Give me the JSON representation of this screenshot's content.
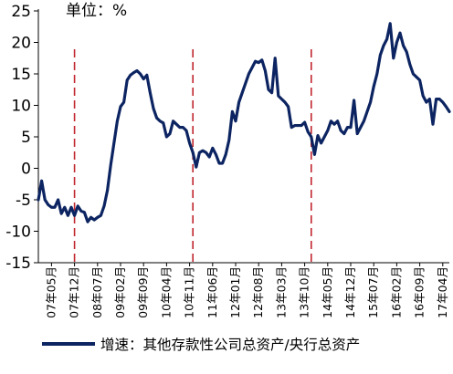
{
  "chart_data": {
    "type": "line",
    "unit_label": "单位：%",
    "yticks": [
      25,
      20,
      15,
      10,
      5,
      0,
      -5,
      -10,
      -15
    ],
    "ylim": [
      -15,
      25
    ],
    "x_tick_labels": [
      "07年05月",
      "07年12月",
      "08年07月",
      "09年02月",
      "09年09月",
      "10年04月",
      "10年11月",
      "11年06月",
      "12年01月",
      "12年08月",
      "13年03月",
      "13年10月",
      "14年05月",
      "14年12月",
      "15年07月",
      "16年02月",
      "16年09月",
      "17年04月"
    ],
    "x_start": "2007-01",
    "x_end": "2017-06",
    "vlines": [
      "2007-12",
      "2010-12",
      "2013-12"
    ],
    "line_color": "#0c2461",
    "vline_color": "#c0262d",
    "series": [
      {
        "name": "增速：其他存款性公司总资产/央行总资产",
        "points": [
          [
            "2007-01",
            -5.0
          ],
          [
            "2007-02",
            -2.0
          ],
          [
            "2007-03",
            -5.0
          ],
          [
            "2007-04",
            -5.8
          ],
          [
            "2007-05",
            -6.2
          ],
          [
            "2007-06",
            -6.2
          ],
          [
            "2007-07",
            -5.0
          ],
          [
            "2007-08",
            -7.2
          ],
          [
            "2007-09",
            -6.2
          ],
          [
            "2007-10",
            -7.5
          ],
          [
            "2007-11",
            -6.2
          ],
          [
            "2007-12",
            -7.5
          ],
          [
            "2008-01",
            -6.0
          ],
          [
            "2008-02",
            -6.8
          ],
          [
            "2008-03",
            -7.0
          ],
          [
            "2008-04",
            -8.5
          ],
          [
            "2008-05",
            -7.8
          ],
          [
            "2008-06",
            -8.2
          ],
          [
            "2008-07",
            -7.8
          ],
          [
            "2008-08",
            -7.5
          ],
          [
            "2008-09",
            -6.0
          ],
          [
            "2008-10",
            -3.5
          ],
          [
            "2008-11",
            0.5
          ],
          [
            "2008-12",
            4.0
          ],
          [
            "2009-01",
            7.5
          ],
          [
            "2009-02",
            9.8
          ],
          [
            "2009-03",
            10.5
          ],
          [
            "2009-04",
            14.0
          ],
          [
            "2009-05",
            14.8
          ],
          [
            "2009-06",
            15.2
          ],
          [
            "2009-07",
            15.5
          ],
          [
            "2009-08",
            15.0
          ],
          [
            "2009-09",
            14.2
          ],
          [
            "2009-10",
            14.8
          ],
          [
            "2009-11",
            12.0
          ],
          [
            "2009-12",
            9.5
          ],
          [
            "2010-01",
            8.0
          ],
          [
            "2010-02",
            7.5
          ],
          [
            "2010-03",
            7.2
          ],
          [
            "2010-04",
            5.0
          ],
          [
            "2010-05",
            5.5
          ],
          [
            "2010-06",
            7.5
          ],
          [
            "2010-07",
            7.0
          ],
          [
            "2010-08",
            6.5
          ],
          [
            "2010-09",
            6.5
          ],
          [
            "2010-10",
            6.0
          ],
          [
            "2010-11",
            4.0
          ],
          [
            "2010-12",
            2.5
          ],
          [
            "2011-01",
            0.2
          ],
          [
            "2011-02",
            2.5
          ],
          [
            "2011-03",
            2.8
          ],
          [
            "2011-04",
            2.5
          ],
          [
            "2011-05",
            1.8
          ],
          [
            "2011-06",
            3.2
          ],
          [
            "2011-07",
            2.2
          ],
          [
            "2011-08",
            0.8
          ],
          [
            "2011-09",
            0.8
          ],
          [
            "2011-10",
            2.2
          ],
          [
            "2011-11",
            4.5
          ],
          [
            "2011-12",
            9.0
          ],
          [
            "2012-01",
            7.5
          ],
          [
            "2012-02",
            10.5
          ],
          [
            "2012-03",
            12.0
          ],
          [
            "2012-04",
            13.5
          ],
          [
            "2012-05",
            15.0
          ],
          [
            "2012-06",
            16.0
          ],
          [
            "2012-07",
            17.0
          ],
          [
            "2012-08",
            16.8
          ],
          [
            "2012-09",
            17.2
          ],
          [
            "2012-10",
            15.5
          ],
          [
            "2012-11",
            12.5
          ],
          [
            "2012-12",
            12.0
          ],
          [
            "2013-01",
            17.5
          ],
          [
            "2013-02",
            11.5
          ],
          [
            "2013-03",
            11.0
          ],
          [
            "2013-04",
            10.5
          ],
          [
            "2013-05",
            9.8
          ],
          [
            "2013-06",
            6.5
          ],
          [
            "2013-07",
            6.8
          ],
          [
            "2013-08",
            6.8
          ],
          [
            "2013-09",
            6.8
          ],
          [
            "2013-10",
            7.3
          ],
          [
            "2013-11",
            5.8
          ],
          [
            "2013-12",
            5.0
          ],
          [
            "2014-01",
            2.2
          ],
          [
            "2014-02",
            5.2
          ],
          [
            "2014-03",
            4.0
          ],
          [
            "2014-04",
            5.0
          ],
          [
            "2014-05",
            6.0
          ],
          [
            "2014-06",
            7.5
          ],
          [
            "2014-07",
            7.0
          ],
          [
            "2014-08",
            7.5
          ],
          [
            "2014-09",
            6.0
          ],
          [
            "2014-10",
            5.5
          ],
          [
            "2014-11",
            6.5
          ],
          [
            "2014-12",
            6.5
          ],
          [
            "2015-01",
            10.8
          ],
          [
            "2015-02",
            5.5
          ],
          [
            "2015-03",
            6.5
          ],
          [
            "2015-04",
            7.5
          ],
          [
            "2015-05",
            9.0
          ],
          [
            "2015-06",
            10.5
          ],
          [
            "2015-07",
            13.0
          ],
          [
            "2015-08",
            15.0
          ],
          [
            "2015-09",
            18.0
          ],
          [
            "2015-10",
            19.5
          ],
          [
            "2015-11",
            20.5
          ],
          [
            "2015-12",
            23.0
          ],
          [
            "2016-01",
            17.5
          ],
          [
            "2016-02",
            20.0
          ],
          [
            "2016-03",
            21.5
          ],
          [
            "2016-04",
            19.5
          ],
          [
            "2016-05",
            18.5
          ],
          [
            "2016-06",
            16.5
          ],
          [
            "2016-07",
            15.0
          ],
          [
            "2016-08",
            14.5
          ],
          [
            "2016-09",
            14.0
          ],
          [
            "2016-10",
            11.5
          ],
          [
            "2016-11",
            10.5
          ],
          [
            "2016-12",
            11.0
          ],
          [
            "2017-01",
            7.0
          ],
          [
            "2017-02",
            11.0
          ],
          [
            "2017-03",
            11.0
          ],
          [
            "2017-04",
            10.5
          ],
          [
            "2017-05",
            9.8
          ],
          [
            "2017-06",
            9.0
          ]
        ]
      }
    ]
  }
}
